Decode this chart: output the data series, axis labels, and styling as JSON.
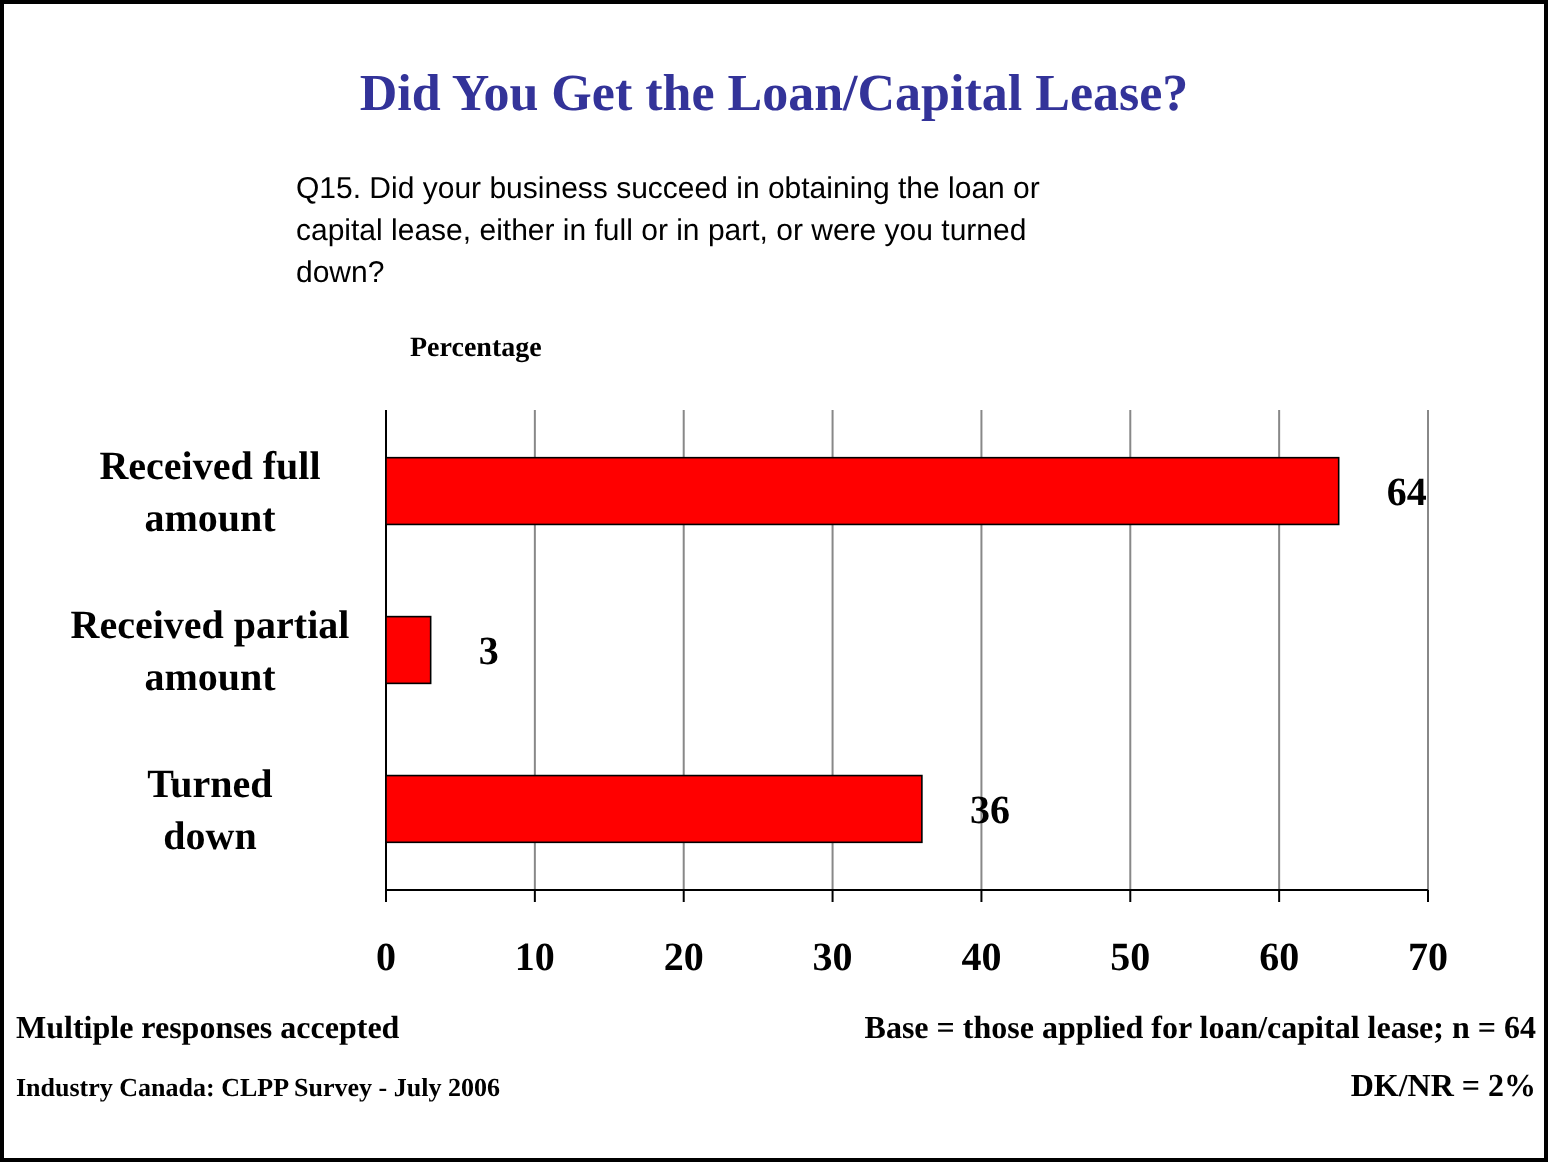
{
  "chart_data": {
    "type": "bar",
    "orientation": "horizontal",
    "title": "Did You Get the Loan/Capital Lease?",
    "subtitle": "Q15. Did your business succeed in obtaining the loan or capital lease, either in full or in part, or were you turned down?",
    "xlabel": "Percentage",
    "categories": [
      "Received full amount",
      "Received partial amount",
      "Turned down"
    ],
    "values": [
      64,
      3,
      36
    ],
    "color": "#ff0000",
    "data_labels": true,
    "xlim": [
      0,
      70
    ],
    "xticks": [
      0,
      10,
      20,
      30,
      40,
      50,
      60,
      70
    ],
    "grid": "x",
    "annotations": [
      "Multiple responses accepted",
      "Base = those applied for loan/capital lease; n = 64",
      "Industry Canada: CLPP Survey - July 2006",
      "DK/NR = 2%"
    ]
  }
}
